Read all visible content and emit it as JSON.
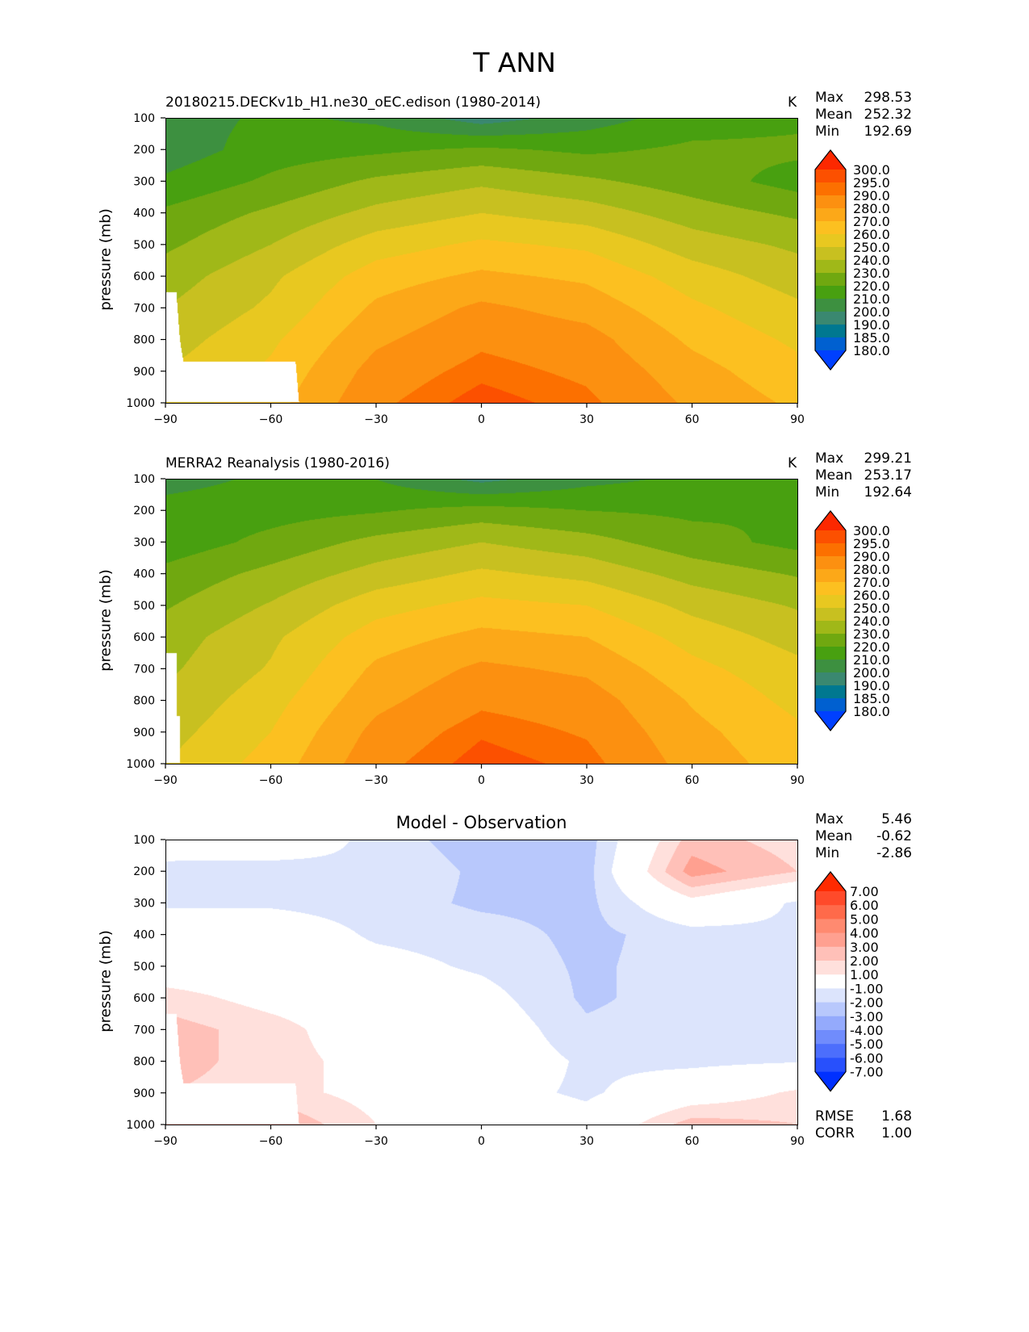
{
  "figure": {
    "title": "T ANN"
  },
  "chart_data": [
    {
      "type": "contour",
      "subtitle": "20180215.DECKv1b_H1.ne30_oEC.edison (1980-2014)",
      "units": "K",
      "stats": [
        {
          "label": "Max",
          "value": "298.53"
        },
        {
          "label": "Mean",
          "value": "252.32"
        },
        {
          "label": "Min",
          "value": "192.69"
        }
      ],
      "ylabel": "pressure (mb)",
      "xlim": [
        -90,
        90
      ],
      "ylim": [
        1000,
        100
      ],
      "xticks": [
        "−90",
        "−60",
        "−30",
        "0",
        "30",
        "60",
        "90"
      ],
      "xtick_values": [
        -90,
        -60,
        -30,
        0,
        30,
        60,
        90
      ],
      "yticks": [
        "100",
        "200",
        "300",
        "400",
        "500",
        "600",
        "700",
        "800",
        "900",
        "1000"
      ],
      "ytick_values": [
        100,
        200,
        300,
        400,
        500,
        600,
        700,
        800,
        900,
        1000
      ],
      "levels": [
        180,
        185,
        190,
        200,
        210,
        220,
        230,
        240,
        250,
        260,
        270,
        280,
        290,
        295,
        300
      ],
      "level_labels": [
        "300.0",
        "295.0",
        "290.0",
        "280.0",
        "270.0",
        "260.0",
        "250.0",
        "240.0",
        "230.0",
        "220.0",
        "210.0",
        "200.0",
        "190.0",
        "185.0",
        "180.0"
      ],
      "colors": [
        "#0040ff",
        "#0060d0",
        "#007890",
        "#3a8870",
        "#3d9040",
        "#48a010",
        "#70a810",
        "#a0b818",
        "#c8c020",
        "#e8c820",
        "#fcc020",
        "#fca818",
        "#fc9010",
        "#fc7000",
        "#fc5000",
        "#fc2800"
      ],
      "lat": [
        -90,
        -60,
        -30,
        0,
        30,
        60,
        90
      ],
      "pressure": [
        100,
        200,
        300,
        400,
        500,
        600,
        700,
        800,
        900,
        1000
      ],
      "values": [
        [
          205,
          212,
          208,
          195,
          205,
          215,
          218
        ],
        [
          204,
          215,
          218,
          222,
          218,
          222,
          222
        ],
        [
          212,
          222,
          232,
          238,
          232,
          225,
          216
        ],
        [
          222,
          232,
          243,
          250,
          245,
          235,
          228
        ],
        [
          228,
          240,
          255,
          262,
          258,
          245,
          238
        ],
        [
          235,
          248,
          265,
          272,
          268,
          255,
          245
        ],
        [
          240,
          252,
          272,
          282,
          276,
          262,
          252
        ],
        [
          245,
          258,
          278,
          288,
          284,
          268,
          258
        ],
        [
          250,
          262,
          284,
          293,
          288,
          274,
          263
        ],
        [
          255,
          266,
          288,
          298,
          292,
          278,
          268
        ]
      ],
      "missing_region": [
        [
          -90,
          650
        ],
        [
          -87,
          650
        ],
        [
          -86,
          800
        ],
        [
          -85,
          870
        ],
        [
          -53,
          870
        ],
        [
          -52,
          1000
        ],
        [
          -90,
          1000
        ]
      ]
    },
    {
      "type": "contour",
      "subtitle": "MERRA2 Reanalysis (1980-2016)",
      "units": "K",
      "stats": [
        {
          "label": "Max",
          "value": "299.21"
        },
        {
          "label": "Mean",
          "value": "253.17"
        },
        {
          "label": "Min",
          "value": "192.64"
        }
      ],
      "ylabel": "pressure (mb)",
      "xlim": [
        -90,
        90
      ],
      "ylim": [
        1000,
        100
      ],
      "xticks": [
        "−90",
        "−60",
        "−30",
        "0",
        "30",
        "60",
        "90"
      ],
      "xtick_values": [
        -90,
        -60,
        -30,
        0,
        30,
        60,
        90
      ],
      "yticks": [
        "100",
        "200",
        "300",
        "400",
        "500",
        "600",
        "700",
        "800",
        "900",
        "1000"
      ],
      "ytick_values": [
        100,
        200,
        300,
        400,
        500,
        600,
        700,
        800,
        900,
        1000
      ],
      "levels": [
        180,
        185,
        190,
        200,
        210,
        220,
        230,
        240,
        250,
        260,
        270,
        280,
        290,
        295,
        300
      ],
      "level_labels": [
        "300.0",
        "295.0",
        "290.0",
        "280.0",
        "270.0",
        "260.0",
        "250.0",
        "240.0",
        "230.0",
        "220.0",
        "210.0",
        "200.0",
        "190.0",
        "185.0",
        "180.0"
      ],
      "colors": [
        "#0040ff",
        "#0060d0",
        "#007890",
        "#3a8870",
        "#3d9040",
        "#48a010",
        "#70a810",
        "#a0b818",
        "#c8c020",
        "#e8c820",
        "#fcc020",
        "#fca818",
        "#fc9010",
        "#fc7000",
        "#fc5000",
        "#fc2800"
      ],
      "lat": [
        -90,
        -60,
        -30,
        0,
        30,
        60,
        90
      ],
      "pressure": [
        100,
        200,
        300,
        400,
        500,
        600,
        700,
        800,
        900,
        1000
      ],
      "values": [
        [
          206,
          212,
          210,
          197,
          207,
          212,
          216
        ],
        [
          214,
          216,
          219,
          224,
          220,
          218,
          220
        ],
        [
          214,
          223,
          233,
          240,
          234,
          224,
          217
        ],
        [
          223,
          233,
          244,
          252,
          247,
          236,
          229
        ],
        [
          229,
          241,
          256,
          263,
          260,
          247,
          239
        ],
        [
          235,
          248,
          265,
          273,
          270,
          256,
          246
        ],
        [
          238,
          251,
          272,
          282,
          278,
          263,
          253
        ],
        [
          242,
          256,
          277,
          288,
          285,
          269,
          257
        ],
        [
          246,
          260,
          283,
          294,
          289,
          273,
          262
        ],
        [
          250,
          264,
          287,
          298,
          293,
          276,
          265
        ]
      ],
      "missing_region": [
        [
          -90,
          650
        ],
        [
          -87,
          650
        ],
        [
          -87,
          850
        ],
        [
          -86,
          850
        ],
        [
          -86,
          1000
        ],
        [
          -90,
          1000
        ]
      ]
    },
    {
      "type": "contour",
      "title": "Model - Observation",
      "stats": [
        {
          "label": "Max",
          "value": "5.46"
        },
        {
          "label": "Mean",
          "value": "-0.62"
        },
        {
          "label": "Min",
          "value": "-2.86"
        }
      ],
      "extra_stats": [
        {
          "label": "RMSE",
          "value": "1.68"
        },
        {
          "label": "CORR",
          "value": "1.00"
        }
      ],
      "ylabel": "pressure (mb)",
      "xlim": [
        -90,
        90
      ],
      "ylim": [
        1000,
        100
      ],
      "xticks": [
        "−90",
        "−60",
        "−30",
        "0",
        "30",
        "60",
        "90"
      ],
      "xtick_values": [
        -90,
        -60,
        -30,
        0,
        30,
        60,
        90
      ],
      "yticks": [
        "100",
        "200",
        "300",
        "400",
        "500",
        "600",
        "700",
        "800",
        "900",
        "1000"
      ],
      "ytick_values": [
        100,
        200,
        300,
        400,
        500,
        600,
        700,
        800,
        900,
        1000
      ],
      "levels": [
        -7,
        -6,
        -5,
        -4,
        -3,
        -2,
        -1,
        1,
        2,
        3,
        4,
        5,
        6,
        7
      ],
      "level_labels": [
        "7.00",
        "6.00",
        "5.00",
        "4.00",
        "3.00",
        "2.00",
        "1.00",
        "-1.00",
        "-2.00",
        "-3.00",
        "-4.00",
        "-5.00",
        "-6.00",
        "-7.00"
      ],
      "colors": [
        "#0030ff",
        "#2850fc",
        "#4c6efc",
        "#708cfc",
        "#94aafc",
        "#b8c8fc",
        "#dce4fc",
        "#ffffff",
        "#ffe0dc",
        "#ffc0b8",
        "#ffa090",
        "#ff8a70",
        "#ff6a4a",
        "#ff4a2a",
        "#ff2a00"
      ],
      "lat": [
        -90,
        -60,
        -30,
        0,
        30,
        60,
        90
      ],
      "pressure": [
        100,
        200,
        300,
        400,
        500,
        600,
        700,
        800,
        900,
        1000
      ],
      "values": [
        [
          0,
          0.5,
          -1.5,
          -2.5,
          -2.5,
          2.5,
          1.5
        ],
        [
          -1.5,
          -1.8,
          -1.2,
          -2.2,
          -2.4,
          3.5,
          2
        ],
        [
          -1.2,
          -1.2,
          -1.5,
          -2.2,
          -2.3,
          0.5,
          -1.2
        ],
        [
          0,
          0,
          -1.2,
          -1.5,
          -2.3,
          -1.5,
          -1.2
        ],
        [
          0,
          0,
          -0.5,
          -1.2,
          -2.2,
          -1.5,
          -1.2
        ],
        [
          1.5,
          0.5,
          0,
          -0.5,
          -2.2,
          -1.5,
          -1.3
        ],
        [
          2.5,
          1.5,
          0,
          0,
          -1.8,
          -1.5,
          -1.3
        ],
        [
          2.5,
          1.5,
          0.5,
          0,
          -1.2,
          -1.3,
          -1.1
        ],
        [
          2,
          1.5,
          0.5,
          -0.5,
          -1.2,
          0,
          1.2
        ],
        [
          2,
          3,
          1,
          0,
          -0.5,
          2.5,
          2
        ]
      ],
      "missing_region": [
        [
          -90,
          650
        ],
        [
          -87,
          650
        ],
        [
          -86,
          800
        ],
        [
          -85,
          870
        ],
        [
          -53,
          870
        ],
        [
          -52,
          1000
        ],
        [
          -90,
          1000
        ]
      ]
    }
  ]
}
